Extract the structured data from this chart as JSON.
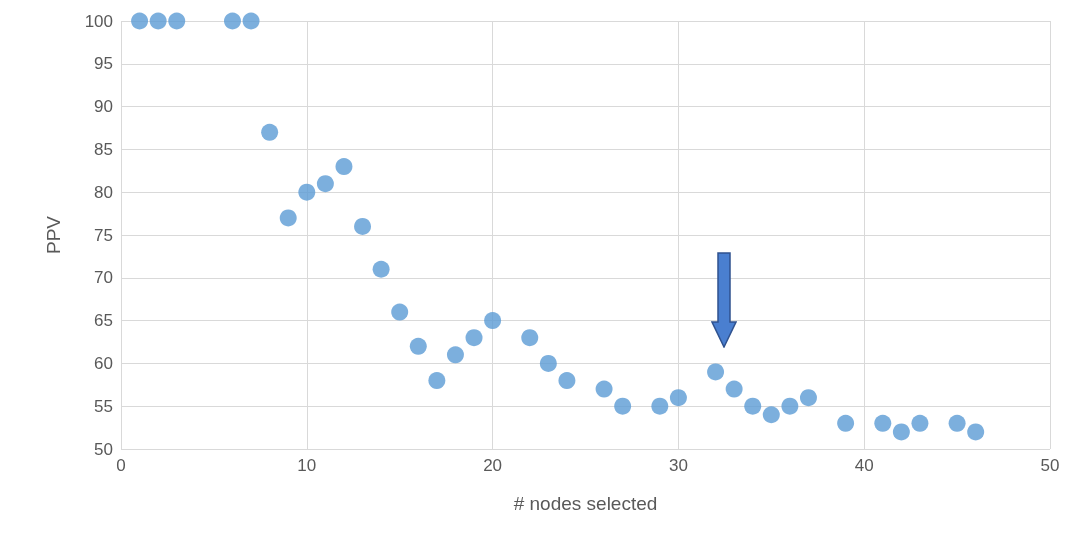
{
  "chart_data": {
    "type": "scatter",
    "xlabel": "# nodes selected",
    "ylabel": "PPV",
    "x": [
      1,
      2,
      3,
      6,
      7,
      8,
      9,
      10,
      11,
      12,
      13,
      14,
      15,
      16,
      17,
      18,
      19,
      20,
      22,
      23,
      24,
      26,
      27,
      29,
      30,
      32,
      33,
      34,
      35,
      36,
      37,
      39,
      41,
      42,
      43,
      45,
      46
    ],
    "series": [
      {
        "color": "#5b9bd5",
        "values": [
          100,
          100,
          100,
          100,
          100,
          87,
          77,
          80,
          81,
          83,
          76,
          71,
          66,
          62,
          58,
          61,
          63,
          65,
          63,
          60,
          58,
          57,
          55,
          55,
          56,
          59,
          57,
          55,
          54,
          55,
          56,
          53,
          53,
          52,
          53,
          53,
          52
        ]
      }
    ],
    "xlim": [
      0,
      50
    ],
    "xticks": [
      0,
      10,
      20,
      30,
      40,
      50
    ],
    "ylim": [
      50,
      100
    ],
    "yticks": [
      50,
      55,
      60,
      65,
      70,
      75,
      80,
      85,
      90,
      95,
      100
    ],
    "grid": true,
    "marker": "circle"
  }
}
